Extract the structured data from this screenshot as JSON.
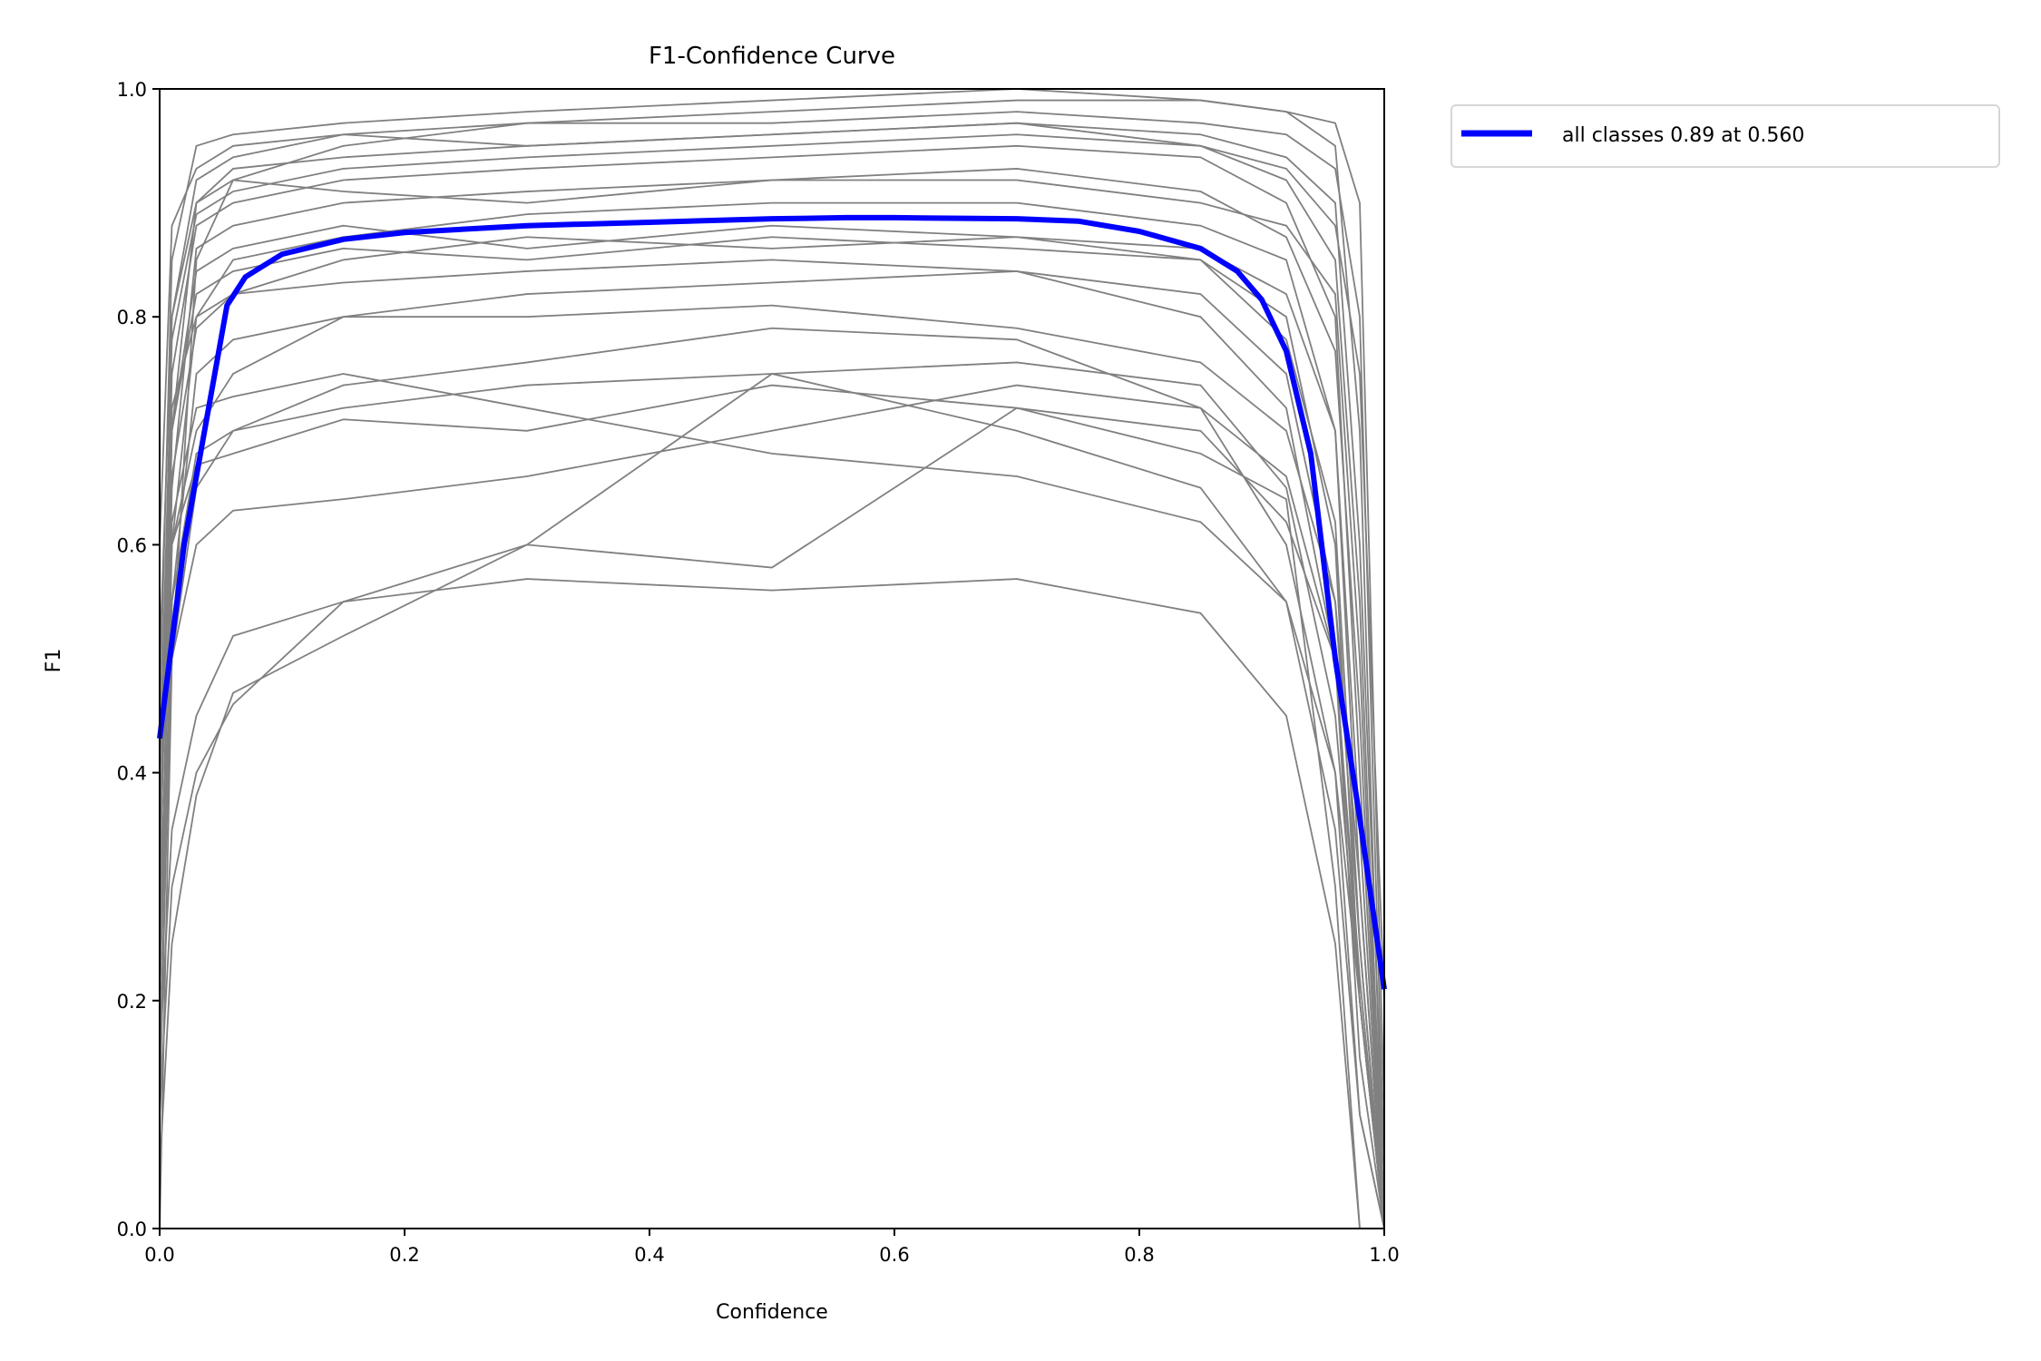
{
  "chart_data": {
    "type": "line",
    "title": "F1-Confidence Curve",
    "xlabel": "Confidence",
    "ylabel": "F1",
    "xlim": [
      0,
      1
    ],
    "ylim": [
      0,
      1
    ],
    "xticks": [
      "0.0",
      "0.2",
      "0.4",
      "0.6",
      "0.8",
      "1.0"
    ],
    "yticks": [
      "0.0",
      "0.2",
      "0.4",
      "0.6",
      "0.8",
      "1.0"
    ],
    "grid": false,
    "legend_placement": "outside-top-right",
    "colors": {
      "all_classes": "#0000ff",
      "per_class": "#808080"
    },
    "legend": [
      {
        "label": "all classes 0.89 at 0.560",
        "color": "#0000ff"
      }
    ],
    "all_classes": {
      "x": [
        0,
        0.02,
        0.04,
        0.055,
        0.07,
        0.1,
        0.15,
        0.2,
        0.3,
        0.4,
        0.5,
        0.56,
        0.6,
        0.7,
        0.75,
        0.8,
        0.85,
        0.88,
        0.9,
        0.92,
        0.94,
        0.96,
        0.98,
        1.0
      ],
      "y": [
        0.43,
        0.6,
        0.72,
        0.81,
        0.835,
        0.855,
        0.868,
        0.874,
        0.88,
        0.883,
        0.886,
        0.887,
        0.887,
        0.886,
        0.884,
        0.875,
        0.86,
        0.84,
        0.815,
        0.77,
        0.68,
        0.5,
        0.36,
        0.21
      ]
    },
    "per_class_x": [
      0,
      0.01,
      0.03,
      0.06,
      0.15,
      0.3,
      0.5,
      0.7,
      0.85,
      0.92,
      0.96,
      0.98,
      1.0
    ],
    "per_class_y": [
      [
        0.0,
        0.5,
        0.85,
        0.92,
        0.95,
        0.97,
        0.98,
        0.99,
        0.99,
        0.98,
        0.95,
        0.7,
        0.0
      ],
      [
        0.2,
        0.7,
        0.9,
        0.93,
        0.94,
        0.95,
        0.96,
        0.97,
        0.96,
        0.94,
        0.9,
        0.6,
        0.05
      ],
      [
        0.3,
        0.75,
        0.88,
        0.9,
        0.92,
        0.93,
        0.94,
        0.95,
        0.94,
        0.9,
        0.8,
        0.4,
        0.0
      ],
      [
        0.1,
        0.6,
        0.8,
        0.85,
        0.87,
        0.89,
        0.9,
        0.9,
        0.88,
        0.85,
        0.7,
        0.3,
        0.0
      ],
      [
        0.35,
        0.7,
        0.82,
        0.84,
        0.86,
        0.85,
        0.87,
        0.86,
        0.85,
        0.8,
        0.6,
        0.2,
        0.0
      ],
      [
        0.4,
        0.72,
        0.8,
        0.82,
        0.83,
        0.84,
        0.85,
        0.84,
        0.82,
        0.75,
        0.55,
        0.25,
        0.0
      ],
      [
        0.25,
        0.6,
        0.7,
        0.75,
        0.8,
        0.82,
        0.83,
        0.84,
        0.8,
        0.72,
        0.5,
        0.15,
        0.0
      ],
      [
        0.2,
        0.55,
        0.68,
        0.7,
        0.72,
        0.74,
        0.75,
        0.76,
        0.74,
        0.65,
        0.45,
        0.2,
        0.0
      ],
      [
        0.3,
        0.5,
        0.6,
        0.63,
        0.64,
        0.66,
        0.7,
        0.74,
        0.72,
        0.6,
        0.4,
        0.1,
        0.0
      ],
      [
        0.1,
        0.3,
        0.4,
        0.46,
        0.55,
        0.6,
        0.58,
        0.72,
        0.7,
        0.62,
        0.5,
        0.2,
        0.0
      ],
      [
        0.15,
        0.35,
        0.45,
        0.52,
        0.55,
        0.57,
        0.56,
        0.57,
        0.54,
        0.45,
        0.25,
        0.0,
        0.0
      ],
      [
        0.05,
        0.25,
        0.38,
        0.47,
        0.52,
        0.6,
        0.75,
        0.7,
        0.65,
        0.55,
        0.35,
        0.1,
        0.0
      ],
      [
        0.45,
        0.85,
        0.95,
        0.96,
        0.97,
        0.98,
        0.99,
        1.0,
        0.99,
        0.98,
        0.97,
        0.9,
        0.1
      ],
      [
        0.5,
        0.8,
        0.92,
        0.94,
        0.96,
        0.97,
        0.97,
        0.98,
        0.97,
        0.96,
        0.93,
        0.8,
        0.05
      ],
      [
        0.2,
        0.65,
        0.86,
        0.88,
        0.9,
        0.91,
        0.92,
        0.92,
        0.9,
        0.88,
        0.82,
        0.5,
        0.0
      ],
      [
        0.3,
        0.7,
        0.84,
        0.86,
        0.88,
        0.86,
        0.88,
        0.87,
        0.86,
        0.82,
        0.7,
        0.35,
        0.0
      ],
      [
        0.1,
        0.55,
        0.75,
        0.78,
        0.8,
        0.8,
        0.81,
        0.79,
        0.76,
        0.7,
        0.55,
        0.3,
        0.0
      ],
      [
        0.25,
        0.62,
        0.72,
        0.73,
        0.75,
        0.72,
        0.68,
        0.66,
        0.62,
        0.55,
        0.4,
        0.2,
        0.0
      ],
      [
        0.35,
        0.6,
        0.67,
        0.68,
        0.71,
        0.7,
        0.74,
        0.72,
        0.68,
        0.64,
        0.3,
        0.0,
        0.0
      ],
      [
        0.6,
        0.88,
        0.93,
        0.95,
        0.96,
        0.95,
        0.96,
        0.97,
        0.95,
        0.93,
        0.88,
        0.75,
        0.2
      ],
      [
        0.4,
        0.78,
        0.89,
        0.91,
        0.93,
        0.94,
        0.95,
        0.96,
        0.95,
        0.92,
        0.85,
        0.55,
        0.0
      ],
      [
        0.2,
        0.66,
        0.79,
        0.82,
        0.85,
        0.87,
        0.86,
        0.87,
        0.85,
        0.78,
        0.62,
        0.25,
        0.0
      ],
      [
        0.15,
        0.5,
        0.65,
        0.7,
        0.74,
        0.76,
        0.79,
        0.78,
        0.72,
        0.66,
        0.5,
        0.22,
        0.0
      ],
      [
        0.3,
        0.8,
        0.9,
        0.92,
        0.91,
        0.9,
        0.92,
        0.93,
        0.91,
        0.87,
        0.77,
        0.45,
        0.0
      ]
    ]
  }
}
